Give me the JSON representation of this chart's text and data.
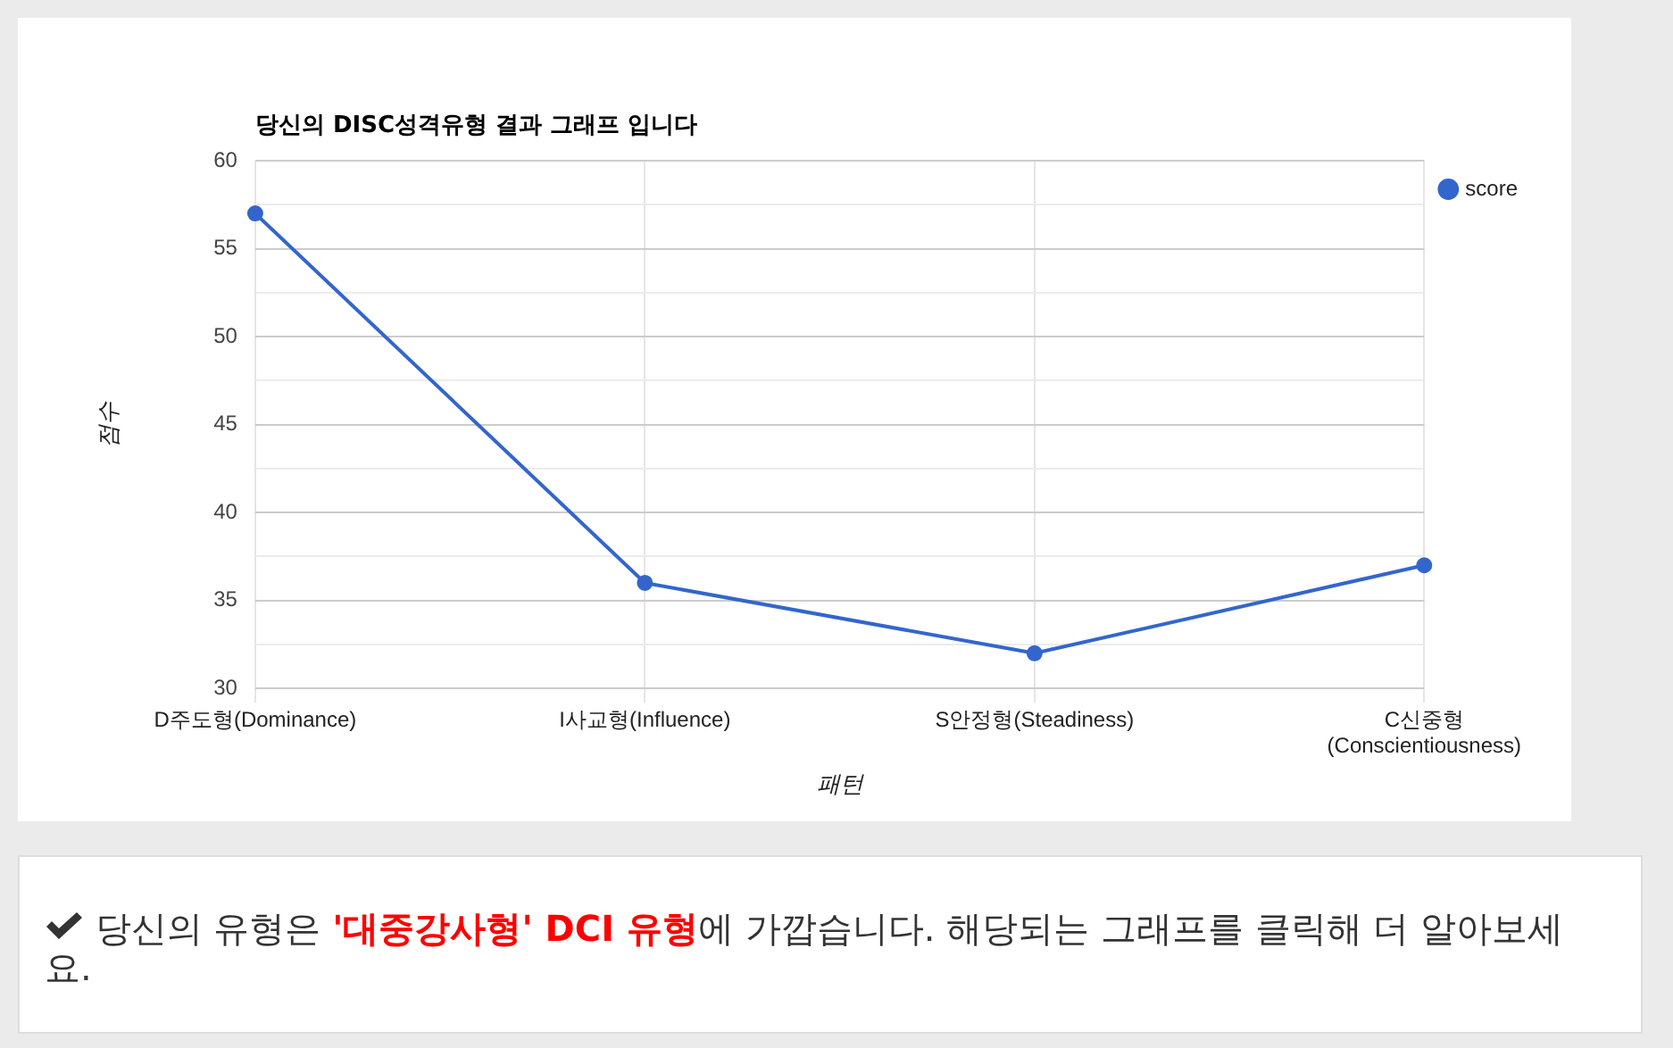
{
  "chart_data": {
    "type": "line",
    "title": "당신의 DISC성격유형 결과 그래프 입니다",
    "xlabel": "패턴",
    "ylabel": "점수",
    "categories": [
      "D주도형(Dominance)",
      "I사교형(Influence)",
      "S안정형(Steadiness)",
      "C신중형(Conscientiousness)"
    ],
    "series": [
      {
        "name": "score",
        "color": "#3366cc",
        "values": [
          57,
          36,
          32,
          37
        ]
      }
    ],
    "ylim": [
      30,
      60
    ],
    "yticks": [
      30,
      {
        "value": 32.5,
        "label": null
      },
      35,
      {
        "value": 37.5,
        "label": null
      },
      40,
      {
        "value": 42.5,
        "label": null
      },
      45,
      {
        "value": 47.5,
        "label": null
      },
      50,
      {
        "value": 52.5,
        "label": null
      },
      55,
      {
        "value": 57.5,
        "label": null
      },
      60
    ],
    "grid": true,
    "legend": "top right",
    "marker": "circle",
    "line_style": "solid",
    "annotations": [
      "당신의 유형은 ",
      "'대중강사형' DCI 유형",
      "에 가깝습니다. 해당되는 그래프를 클릭해 더 알아보세요."
    ]
  }
}
